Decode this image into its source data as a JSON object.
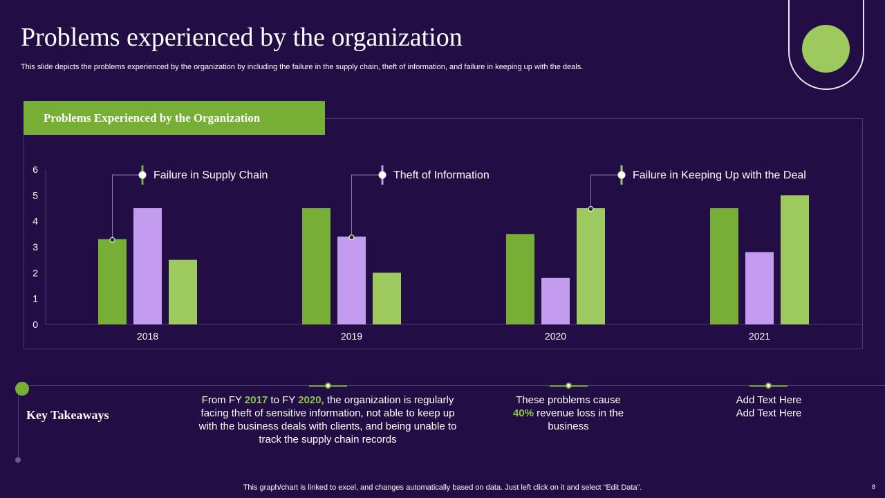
{
  "slide": {
    "title": "Problems experienced by the organization",
    "subtitle": "This slide depicts the problems experienced by the organization by including the failure in the supply chain, theft of information, and failure in keeping up with the deals.",
    "footer": "This graph/chart is linked to excel,  and changes automatically based on data. Just left click on it and select “Edit Data”.",
    "page_number": "8"
  },
  "colors": {
    "background": "#220e45",
    "green": "#76ae36",
    "purple": "#c39cf0",
    "light_green": "#9dc95f"
  },
  "chart_header": "Problems Experienced by the Organization",
  "chart_data": {
    "type": "bar",
    "title": "Problems Experienced by the Organization",
    "categories": [
      "2018",
      "2019",
      "2020",
      "2021"
    ],
    "series": [
      {
        "name": "Failure in Supply Chain",
        "color": "#76ae36",
        "values": [
          3.3,
          4.5,
          3.5,
          4.5
        ]
      },
      {
        "name": "Theft of Information",
        "color": "#c39cf0",
        "values": [
          4.5,
          3.4,
          1.8,
          2.8
        ]
      },
      {
        "name": "Failure in Keeping Up with the Deal",
        "color": "#9dc95f",
        "values": [
          2.5,
          2.0,
          4.5,
          5.0
        ]
      }
    ],
    "ylim": [
      0,
      6
    ],
    "yticks": [
      "0",
      "1",
      "2",
      "3",
      "4",
      "5",
      "6"
    ],
    "xlabel": "",
    "ylabel": "",
    "legend_position": "top"
  },
  "takeaways": {
    "label": "Key Takeaways",
    "items": [
      {
        "prefix": "From FY ",
        "year1": "2017",
        "mid": " to FY ",
        "year2": "2020,",
        "suffix": " the organization is regularly facing theft of sensitive information, not able to keep up with the business deals with clients, and being unable to track the supply chain records"
      },
      {
        "prefix": "These problems cause",
        "highlight": "40%",
        "suffix": " revenue loss in the business"
      },
      {
        "line1": "Add Text Here",
        "line2": "Add Text Here"
      }
    ]
  }
}
